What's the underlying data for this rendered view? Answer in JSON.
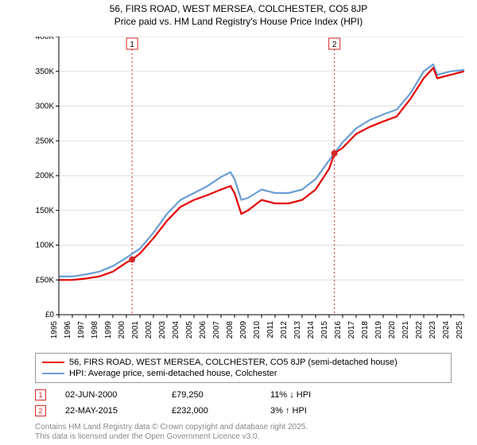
{
  "title_line1": "56, FIRS ROAD, WEST MERSEA, COLCHESTER, CO5 8JP",
  "title_line2": "Price paid vs. HM Land Registry's House Price Index (HPI)",
  "chart": {
    "type": "line",
    "background_color": "#ffffff",
    "grid_color": "#dddddd",
    "axis_color": "#000000",
    "title_fontsize": 12,
    "label_fontsize": 10,
    "xlim": [
      1995,
      2025
    ],
    "ylim": [
      0,
      400000
    ],
    "ytick_step": 50000,
    "yticks": [
      "£0",
      "£50K",
      "£100K",
      "£150K",
      "£200K",
      "£250K",
      "£300K",
      "£350K",
      "£400K"
    ],
    "xticks": [
      "1995",
      "1996",
      "1997",
      "1998",
      "1999",
      "2000",
      "2001",
      "2002",
      "2003",
      "2004",
      "2005",
      "2006",
      "2007",
      "2008",
      "2009",
      "2010",
      "2011",
      "2012",
      "2013",
      "2014",
      "2015",
      "2016",
      "2017",
      "2018",
      "2019",
      "2020",
      "2021",
      "2022",
      "2023",
      "2024",
      "2025"
    ],
    "series": [
      {
        "name": "56, FIRS ROAD, WEST MERSEA, COLCHESTER, CO5 8JP (semi-detached house)",
        "color": "#e60000",
        "line_width": 2.2,
        "values": [
          [
            1995,
            50000
          ],
          [
            1996,
            50000
          ],
          [
            1997,
            52000
          ],
          [
            1998,
            55000
          ],
          [
            1999,
            62000
          ],
          [
            2000,
            75000
          ],
          [
            2000.42,
            79250
          ],
          [
            2001,
            88000
          ],
          [
            2002,
            110000
          ],
          [
            2003,
            135000
          ],
          [
            2004,
            155000
          ],
          [
            2005,
            165000
          ],
          [
            2006,
            172000
          ],
          [
            2007,
            180000
          ],
          [
            2007.7,
            185000
          ],
          [
            2008,
            175000
          ],
          [
            2008.5,
            145000
          ],
          [
            2009,
            150000
          ],
          [
            2010,
            165000
          ],
          [
            2011,
            160000
          ],
          [
            2012,
            160000
          ],
          [
            2013,
            165000
          ],
          [
            2014,
            180000
          ],
          [
            2015,
            210000
          ],
          [
            2015.39,
            232000
          ],
          [
            2016,
            240000
          ],
          [
            2017,
            260000
          ],
          [
            2018,
            270000
          ],
          [
            2019,
            278000
          ],
          [
            2020,
            285000
          ],
          [
            2021,
            310000
          ],
          [
            2022,
            340000
          ],
          [
            2022.7,
            355000
          ],
          [
            2023,
            340000
          ],
          [
            2024,
            345000
          ],
          [
            2025,
            350000
          ]
        ]
      },
      {
        "name": "HPI: Average price, semi-detached house, Colchester",
        "color": "#6a9ed4",
        "line_width": 2.2,
        "values": [
          [
            1995,
            55000
          ],
          [
            1996,
            55000
          ],
          [
            1997,
            58000
          ],
          [
            1998,
            62000
          ],
          [
            1999,
            70000
          ],
          [
            2000,
            82000
          ],
          [
            2001,
            95000
          ],
          [
            2002,
            118000
          ],
          [
            2003,
            145000
          ],
          [
            2004,
            165000
          ],
          [
            2005,
            175000
          ],
          [
            2006,
            185000
          ],
          [
            2007,
            198000
          ],
          [
            2007.7,
            205000
          ],
          [
            2008,
            195000
          ],
          [
            2008.5,
            165000
          ],
          [
            2009,
            168000
          ],
          [
            2010,
            180000
          ],
          [
            2011,
            175000
          ],
          [
            2012,
            175000
          ],
          [
            2013,
            180000
          ],
          [
            2014,
            195000
          ],
          [
            2015,
            222000
          ],
          [
            2016,
            248000
          ],
          [
            2017,
            268000
          ],
          [
            2018,
            280000
          ],
          [
            2019,
            288000
          ],
          [
            2020,
            295000
          ],
          [
            2021,
            318000
          ],
          [
            2022,
            350000
          ],
          [
            2022.7,
            360000
          ],
          [
            2023,
            345000
          ],
          [
            2024,
            350000
          ],
          [
            2025,
            352000
          ]
        ]
      }
    ],
    "transaction_markers": [
      {
        "n": "1",
        "x": 2000.42,
        "y": 79250,
        "color": "#d62728"
      },
      {
        "n": "2",
        "x": 2015.39,
        "y": 232000,
        "color": "#d62728"
      }
    ],
    "marker_line_color": "#d62728",
    "marker_line_dash": "2,3"
  },
  "legend": [
    {
      "color": "#e60000",
      "label": "56, FIRS ROAD, WEST MERSEA, COLCHESTER, CO5 8JP (semi-detached house)"
    },
    {
      "color": "#6a9ed4",
      "label": "HPI: Average price, semi-detached house, Colchester"
    }
  ],
  "transactions": [
    {
      "n": "1",
      "date": "02-JUN-2000",
      "price": "£79,250",
      "diff": "11% ↓ HPI",
      "marker_color": "#d62728"
    },
    {
      "n": "2",
      "date": "22-MAY-2015",
      "price": "£232,000",
      "diff": "3% ↑ HPI",
      "marker_color": "#d62728"
    }
  ],
  "copyright_line1": "Contains HM Land Registry data © Crown copyright and database right 2025.",
  "copyright_line2": "This data is licensed under the Open Government Licence v3.0."
}
